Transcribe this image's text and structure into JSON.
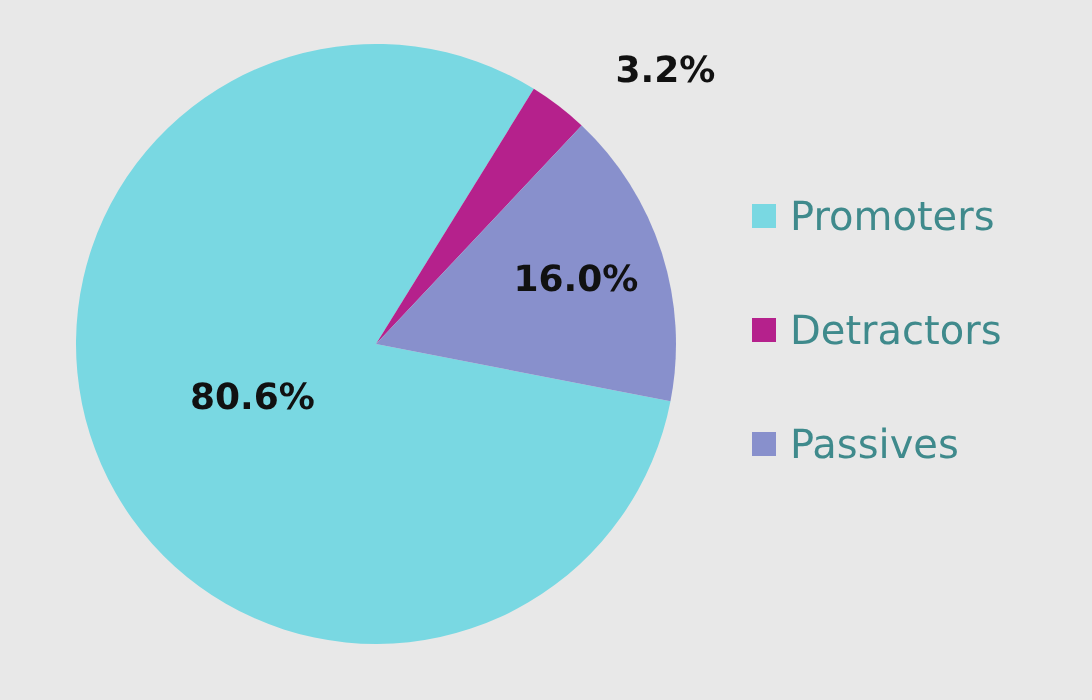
{
  "chart_data": {
    "type": "pie",
    "categories": [
      "Promoters",
      "Detractors",
      "Passives"
    ],
    "values": [
      80.6,
      3.2,
      16.0
    ],
    "colors": [
      "#79d8e2",
      "#b5218c",
      "#8890cc"
    ],
    "value_labels": [
      "80.6%",
      "3.2%",
      "16.0%"
    ],
    "legend": "right"
  }
}
